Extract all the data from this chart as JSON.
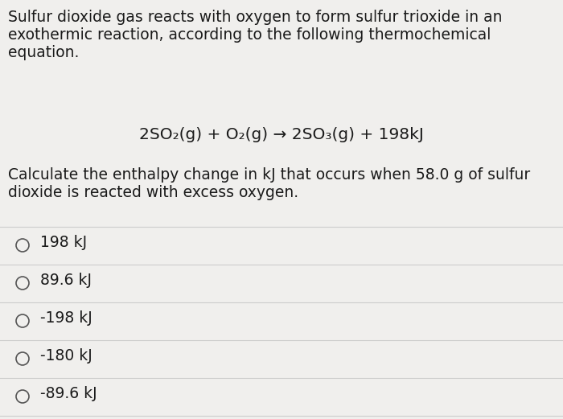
{
  "background_color": "#f0efed",
  "text_color": "#1a1a1a",
  "title_paragraph": "Sulfur dioxide gas reacts with oxygen to form sulfur trioxide in an\nexothermic reaction, according to the following thermochemical\nequation.",
  "equation": "2SO₂(g) + O₂(g) → 2SO₃(g) + 198kJ",
  "question": "Calculate the enthalpy change in kJ that occurs when 58.0 g of sulfur\ndioxide is reacted with excess oxygen.",
  "choices": [
    "198 kJ",
    "89.6 kJ",
    "-198 kJ",
    "-180 kJ",
    "-89.6 kJ"
  ],
  "separator_color": "#cccccc",
  "circle_color": "#555555",
  "font_size_body": 13.5,
  "font_size_equation": 14.5,
  "font_size_choices": 13.5
}
